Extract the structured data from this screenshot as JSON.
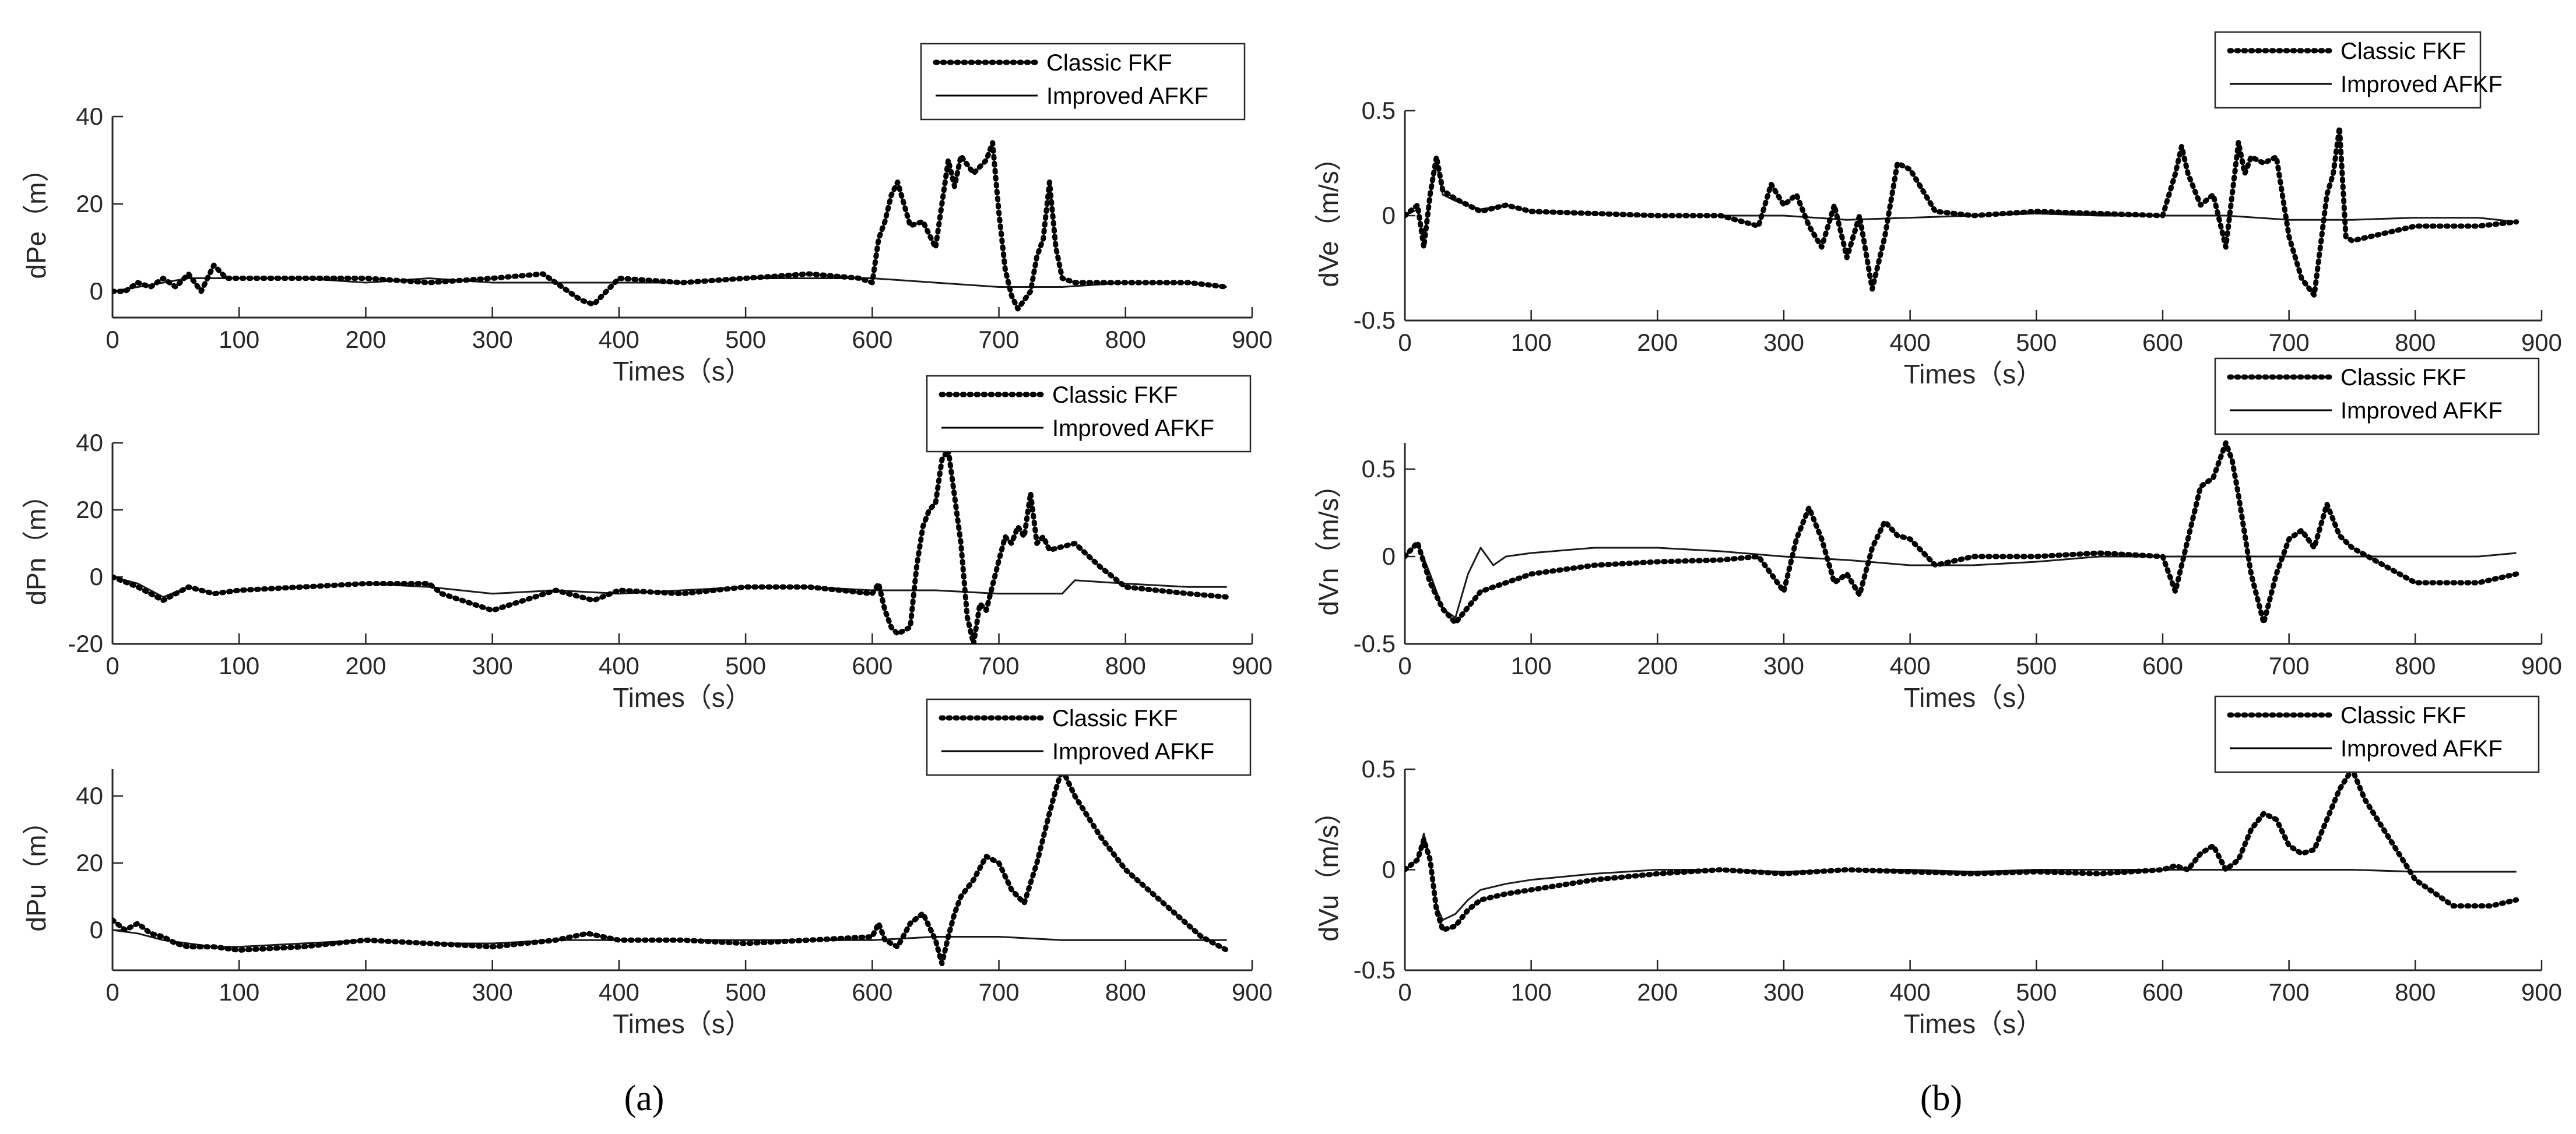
{
  "captions": {
    "left": "(a)",
    "right": "(b)"
  },
  "colors": {
    "classic": "#000000",
    "improved": "#1a1a1a",
    "axis": "#262626"
  },
  "chart_data": [
    {
      "type": "line",
      "panel": "a1",
      "xlabel": "Times（s）",
      "ylabel": "dPe（m）",
      "xlim": [
        0,
        900
      ],
      "ylim": [
        -6,
        40
      ],
      "xticks": [
        0,
        100,
        200,
        300,
        400,
        500,
        600,
        700,
        800,
        900
      ],
      "yticks": [
        0,
        20,
        40
      ],
      "legend": [
        "Classic FKF",
        "Improved AFKF"
      ],
      "series": [
        {
          "name": "Classic FKF",
          "style": "dotted",
          "x": [
            0,
            10,
            20,
            30,
            40,
            50,
            60,
            70,
            80,
            90,
            100,
            150,
            200,
            250,
            300,
            340,
            350,
            370,
            380,
            400,
            450,
            500,
            550,
            590,
            600,
            605,
            610,
            615,
            620,
            630,
            640,
            650,
            660,
            665,
            670,
            680,
            690,
            695,
            700,
            705,
            710,
            715,
            720,
            725,
            730,
            735,
            740,
            745,
            750,
            760,
            800,
            850,
            880
          ],
          "y": [
            0,
            0,
            2,
            1,
            3,
            1,
            4,
            0,
            6,
            3,
            3,
            3,
            3,
            2,
            3,
            4,
            2,
            -2,
            -3,
            3,
            2,
            3,
            4,
            3,
            2,
            12,
            16,
            22,
            25,
            15,
            16,
            10,
            30,
            24,
            31,
            27,
            30,
            34,
            18,
            5,
            -1,
            -4,
            -2,
            0,
            8,
            12,
            25,
            10,
            3,
            2,
            2,
            2,
            1
          ]
        },
        {
          "name": "Improved AFKF",
          "style": "solid",
          "x": [
            0,
            20,
            40,
            60,
            80,
            100,
            150,
            200,
            250,
            300,
            350,
            400,
            450,
            500,
            550,
            600,
            650,
            700,
            750,
            800,
            850,
            880
          ],
          "y": [
            0,
            1,
            2,
            3,
            3,
            3,
            3,
            2,
            3,
            2,
            2,
            2,
            2,
            3,
            3,
            3,
            2,
            1,
            1,
            2,
            2,
            1
          ]
        }
      ]
    },
    {
      "type": "line",
      "panel": "a2",
      "xlabel": "Times（s）",
      "ylabel": "dPn（m）",
      "xlim": [
        0,
        900
      ],
      "ylim": [
        -20,
        40
      ],
      "xticks": [
        0,
        100,
        200,
        300,
        400,
        500,
        600,
        700,
        800,
        900
      ],
      "yticks": [
        -20,
        0,
        20,
        40
      ],
      "legend": [
        "Classic FKF",
        "Improved AFKF"
      ],
      "series": [
        {
          "name": "Classic FKF",
          "style": "dotted",
          "x": [
            0,
            20,
            40,
            60,
            80,
            100,
            150,
            200,
            250,
            260,
            300,
            350,
            380,
            400,
            450,
            500,
            550,
            600,
            605,
            610,
            615,
            620,
            630,
            635,
            640,
            645,
            650,
            655,
            660,
            670,
            675,
            680,
            685,
            690,
            700,
            705,
            710,
            715,
            720,
            725,
            730,
            735,
            740,
            760,
            780,
            800,
            850,
            880
          ],
          "y": [
            0,
            -3,
            -7,
            -3,
            -5,
            -4,
            -3,
            -2,
            -2,
            -5,
            -10,
            -4,
            -7,
            -4,
            -5,
            -3,
            -3,
            -5,
            -2,
            -10,
            -15,
            -17,
            -15,
            3,
            15,
            20,
            22,
            35,
            38,
            10,
            -12,
            -20,
            -8,
            -10,
            5,
            12,
            10,
            15,
            12,
            25,
            10,
            12,
            8,
            10,
            3,
            -3,
            -5,
            -6
          ]
        },
        {
          "name": "Improved AFKF",
          "style": "solid",
          "x": [
            0,
            20,
            40,
            60,
            80,
            100,
            150,
            200,
            250,
            300,
            350,
            400,
            450,
            500,
            550,
            600,
            650,
            700,
            750,
            755,
            760,
            800,
            850,
            880
          ],
          "y": [
            0,
            -2,
            -6,
            -3,
            -5,
            -4,
            -3,
            -2,
            -3,
            -5,
            -4,
            -5,
            -4,
            -3,
            -3,
            -4,
            -4,
            -5,
            -5,
            -3,
            -1,
            -2,
            -3,
            -3
          ]
        }
      ]
    },
    {
      "type": "line",
      "panel": "a3",
      "xlabel": "Times（s）",
      "ylabel": "dPu（m）",
      "xlim": [
        0,
        900
      ],
      "ylim": [
        -12,
        48
      ],
      "xticks": [
        0,
        100,
        200,
        300,
        400,
        500,
        600,
        700,
        800,
        900
      ],
      "yticks": [
        0,
        20,
        40
      ],
      "legend": [
        "Classic FKF",
        "Improved AFKF"
      ],
      "series": [
        {
          "name": "Classic FKF",
          "style": "dotted",
          "x": [
            0,
            10,
            20,
            30,
            40,
            50,
            60,
            80,
            100,
            150,
            200,
            250,
            300,
            350,
            375,
            400,
            450,
            500,
            550,
            600,
            605,
            610,
            620,
            630,
            640,
            650,
            655,
            660,
            665,
            670,
            680,
            690,
            700,
            710,
            720,
            730,
            740,
            745,
            750,
            760,
            780,
            800,
            830,
            860,
            880
          ],
          "y": [
            3,
            0,
            2,
            -1,
            -2,
            -4,
            -5,
            -5,
            -6,
            -5,
            -3,
            -4,
            -5,
            -3,
            -1,
            -3,
            -3,
            -4,
            -3,
            -2,
            2,
            -3,
            -5,
            2,
            5,
            -3,
            -10,
            -2,
            5,
            10,
            15,
            22,
            20,
            12,
            8,
            20,
            35,
            42,
            48,
            40,
            28,
            18,
            8,
            -2,
            -6
          ]
        },
        {
          "name": "Improved AFKF",
          "style": "solid",
          "x": [
            0,
            20,
            40,
            60,
            80,
            100,
            150,
            200,
            250,
            300,
            350,
            400,
            450,
            500,
            550,
            600,
            650,
            700,
            750,
            800,
            850,
            880
          ],
          "y": [
            0,
            -1,
            -3,
            -4,
            -5,
            -5,
            -4,
            -3,
            -4,
            -4,
            -3,
            -3,
            -3,
            -3,
            -3,
            -3,
            -2,
            -2,
            -3,
            -3,
            -3,
            -3
          ]
        }
      ]
    },
    {
      "type": "line",
      "panel": "b1",
      "xlabel": "Times（s）",
      "ylabel": "dVe（m/s）",
      "xlim": [
        0,
        900
      ],
      "ylim": [
        -0.5,
        0.5
      ],
      "xticks": [
        0,
        100,
        200,
        300,
        400,
        500,
        600,
        700,
        800,
        900
      ],
      "yticks": [
        -0.5,
        0,
        0.5
      ],
      "legend": [
        "Classic FKF",
        "Improved AFKF"
      ],
      "series": [
        {
          "name": "Classic FKF",
          "style": "dotted",
          "x": [
            0,
            10,
            15,
            20,
            25,
            30,
            40,
            60,
            80,
            100,
            150,
            200,
            250,
            280,
            290,
            300,
            310,
            320,
            330,
            340,
            350,
            360,
            370,
            380,
            390,
            400,
            420,
            450,
            500,
            550,
            600,
            610,
            615,
            620,
            630,
            640,
            650,
            660,
            665,
            670,
            680,
            690,
            700,
            710,
            720,
            730,
            735,
            740,
            745,
            750,
            800,
            850,
            880
          ],
          "y": [
            0,
            0.05,
            -0.15,
            0.1,
            0.28,
            0.12,
            0.08,
            0.02,
            0.05,
            0.02,
            0.01,
            0,
            0,
            -0.05,
            0.15,
            0.05,
            0.1,
            -0.05,
            -0.15,
            0.05,
            -0.2,
            0,
            -0.35,
            -0.1,
            0.25,
            0.22,
            0.02,
            0,
            0.02,
            0.01,
            0,
            0.2,
            0.33,
            0.2,
            0.05,
            0.1,
            -0.15,
            0.35,
            0.2,
            0.28,
            0.25,
            0.28,
            -0.1,
            -0.3,
            -0.38,
            0.1,
            0.2,
            0.42,
            -0.1,
            -0.12,
            -0.05,
            -0.05,
            -0.03
          ]
        },
        {
          "name": "Improved AFKF",
          "style": "solid",
          "x": [
            0,
            10,
            15,
            20,
            25,
            30,
            40,
            60,
            80,
            100,
            150,
            200,
            250,
            300,
            350,
            400,
            450,
            500,
            550,
            600,
            650,
            700,
            750,
            800,
            850,
            880
          ],
          "y": [
            0,
            0.03,
            -0.12,
            0.1,
            0.25,
            0.1,
            0.07,
            0.03,
            0.05,
            0.02,
            0.01,
            0,
            0,
            0,
            -0.02,
            -0.01,
            0,
            0.01,
            0,
            0,
            0,
            -0.02,
            -0.02,
            -0.01,
            -0.01,
            -0.03
          ]
        }
      ]
    },
    {
      "type": "line",
      "panel": "b2",
      "xlabel": "Times（s）",
      "ylabel": "dVn（m/s）",
      "xlim": [
        0,
        900
      ],
      "ylim": [
        -0.5,
        0.65
      ],
      "xticks": [
        0,
        100,
        200,
        300,
        400,
        500,
        600,
        700,
        800,
        900
      ],
      "yticks": [
        -0.5,
        0,
        0.5
      ],
      "legend": [
        "Classic FKF",
        "Improved AFKF"
      ],
      "series": [
        {
          "name": "Classic FKF",
          "style": "dotted",
          "x": [
            0,
            10,
            20,
            30,
            40,
            60,
            80,
            100,
            150,
            200,
            250,
            280,
            300,
            310,
            320,
            330,
            340,
            350,
            360,
            370,
            380,
            390,
            400,
            420,
            450,
            500,
            550,
            600,
            610,
            620,
            630,
            640,
            650,
            655,
            660,
            670,
            680,
            690,
            700,
            710,
            720,
            730,
            740,
            750,
            800,
            850,
            880
          ],
          "y": [
            0,
            0.08,
            -0.15,
            -0.3,
            -0.38,
            -0.2,
            -0.15,
            -0.1,
            -0.05,
            -0.03,
            -0.02,
            0,
            -0.2,
            0.1,
            0.28,
            0.1,
            -0.15,
            -0.1,
            -0.22,
            0.05,
            0.2,
            0.12,
            0.1,
            -0.05,
            0,
            0,
            0.02,
            0,
            -0.2,
            0.1,
            0.4,
            0.45,
            0.65,
            0.55,
            0.35,
            -0.1,
            -0.38,
            -0.1,
            0.1,
            0.15,
            0.05,
            0.3,
            0.12,
            0.05,
            -0.15,
            -0.15,
            -0.1
          ]
        },
        {
          "name": "Improved AFKF",
          "style": "solid",
          "x": [
            0,
            10,
            20,
            30,
            40,
            50,
            60,
            70,
            80,
            100,
            150,
            200,
            250,
            300,
            350,
            400,
            450,
            500,
            550,
            600,
            650,
            700,
            750,
            800,
            850,
            880
          ],
          "y": [
            0,
            0.08,
            -0.1,
            -0.3,
            -0.35,
            -0.1,
            0.05,
            -0.05,
            0,
            0.02,
            0.05,
            0.05,
            0.03,
            0,
            -0.02,
            -0.05,
            -0.05,
            -0.03,
            0,
            0,
            0,
            0,
            0,
            0,
            0,
            0.02
          ]
        }
      ]
    },
    {
      "type": "line",
      "panel": "b3",
      "xlabel": "Times（s）",
      "ylabel": "dVu（m/s）",
      "xlim": [
        0,
        900
      ],
      "ylim": [
        -0.5,
        0.5
      ],
      "xticks": [
        0,
        100,
        200,
        300,
        400,
        500,
        600,
        700,
        800,
        900
      ],
      "yticks": [
        -0.5,
        0,
        0.5
      ],
      "legend": [
        "Classic FKF",
        "Improved AFKF"
      ],
      "series": [
        {
          "name": "Classic FKF",
          "style": "dotted",
          "x": [
            0,
            10,
            15,
            20,
            25,
            30,
            40,
            50,
            60,
            80,
            100,
            150,
            200,
            250,
            300,
            350,
            400,
            450,
            500,
            550,
            600,
            610,
            620,
            630,
            640,
            650,
            660,
            670,
            680,
            690,
            700,
            710,
            720,
            730,
            740,
            750,
            760,
            780,
            800,
            830,
            860,
            880
          ],
          "y": [
            0,
            0.05,
            0.15,
            0.05,
            -0.2,
            -0.3,
            -0.28,
            -0.2,
            -0.15,
            -0.12,
            -0.1,
            -0.05,
            -0.02,
            0,
            -0.02,
            0,
            -0.01,
            -0.02,
            -0.01,
            -0.02,
            0,
            0.02,
            0,
            0.08,
            0.12,
            0,
            0.05,
            0.2,
            0.28,
            0.25,
            0.12,
            0.08,
            0.1,
            0.25,
            0.4,
            0.5,
            0.35,
            0.15,
            -0.05,
            -0.18,
            -0.18,
            -0.15
          ]
        },
        {
          "name": "Improved AFKF",
          "style": "solid",
          "x": [
            0,
            10,
            15,
            20,
            25,
            30,
            40,
            50,
            60,
            80,
            100,
            150,
            200,
            250,
            300,
            350,
            400,
            450,
            500,
            550,
            600,
            650,
            700,
            750,
            800,
            850,
            880
          ],
          "y": [
            0,
            0.05,
            0.18,
            0.05,
            -0.18,
            -0.25,
            -0.22,
            -0.15,
            -0.1,
            -0.07,
            -0.05,
            -0.02,
            0,
            0,
            -0.01,
            0,
            0,
            -0.01,
            0,
            0,
            0,
            0,
            0,
            0,
            -0.01,
            -0.01,
            -0.01
          ]
        }
      ]
    }
  ]
}
